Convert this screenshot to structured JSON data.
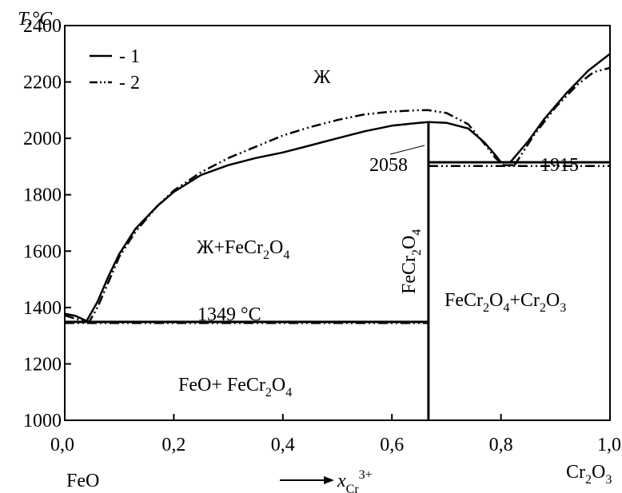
{
  "chart_data": {
    "type": "line",
    "title": "",
    "xlabel": "x",
    "xlabel_subscript": "Cr",
    "xlabel_superscript": "3+",
    "ylabel": "T,°C",
    "xlim": [
      0.0,
      1.0
    ],
    "ylim": [
      1000,
      2400
    ],
    "x_ticks": [
      "0,0",
      "0,2",
      "0,4",
      "0,6",
      "0,8",
      "1,0"
    ],
    "x_tick_values": [
      0.0,
      0.2,
      0.4,
      0.6,
      0.8,
      1.0
    ],
    "y_ticks": [
      "1000",
      "1200",
      "1400",
      "1600",
      "1800",
      "2000",
      "2200",
      "2400"
    ],
    "y_tick_values": [
      1000,
      1200,
      1400,
      1600,
      1800,
      2000,
      2200,
      2400
    ],
    "x_end_labels": {
      "left": "FeO",
      "right": {
        "base": "Cr",
        "sub1": "2",
        "mid": "O",
        "sub2": "3"
      }
    },
    "legend": {
      "position": "top-left",
      "entries": [
        {
          "style": "solid",
          "label": "- 1"
        },
        {
          "style": "dash-dot-dot",
          "label": "- 2"
        }
      ]
    },
    "series": [
      {
        "name": "1",
        "style": "solid",
        "segments": [
          [
            [
              0.0,
              1378
            ],
            [
              0.02,
              1370
            ],
            [
              0.04,
              1352
            ],
            [
              0.06,
              1420
            ],
            [
              0.08,
              1510
            ],
            [
              0.1,
              1590
            ],
            [
              0.13,
              1680
            ],
            [
              0.17,
              1760
            ],
            [
              0.2,
              1810
            ],
            [
              0.25,
              1870
            ],
            [
              0.3,
              1905
            ],
            [
              0.35,
              1930
            ],
            [
              0.4,
              1950
            ],
            [
              0.45,
              1975
            ],
            [
              0.5,
              2000
            ],
            [
              0.55,
              2025
            ],
            [
              0.6,
              2045
            ],
            [
              0.65,
              2055
            ],
            [
              0.667,
              2058
            ],
            [
              0.7,
              2055
            ],
            [
              0.74,
              2035
            ],
            [
              0.77,
              1985
            ],
            [
              0.79,
              1940
            ],
            [
              0.8,
              1915
            ]
          ],
          [
            [
              0.8,
              1915
            ],
            [
              0.817,
              1915
            ]
          ],
          [
            [
              0.817,
              1915
            ],
            [
              0.85,
              1990
            ],
            [
              0.88,
              2070
            ],
            [
              0.92,
              2160
            ],
            [
              0.96,
              2240
            ],
            [
              1.0,
              2300
            ]
          ]
        ]
      },
      {
        "name": "2",
        "style": "dash-dot-dot",
        "segments": [
          [
            [
              0.0,
              1372
            ],
            [
              0.02,
              1360
            ],
            [
              0.045,
              1350
            ],
            [
              0.06,
              1400
            ],
            [
              0.08,
              1490
            ],
            [
              0.1,
              1580
            ],
            [
              0.13,
              1670
            ],
            [
              0.17,
              1760
            ],
            [
              0.2,
              1815
            ],
            [
              0.25,
              1880
            ],
            [
              0.3,
              1930
            ],
            [
              0.35,
              1970
            ],
            [
              0.4,
              2010
            ],
            [
              0.45,
              2040
            ],
            [
              0.5,
              2065
            ],
            [
              0.55,
              2085
            ],
            [
              0.6,
              2095
            ],
            [
              0.65,
              2100
            ],
            [
              0.667,
              2100
            ],
            [
              0.7,
              2090
            ],
            [
              0.74,
              2050
            ],
            [
              0.77,
              1980
            ],
            [
              0.79,
              1930
            ],
            [
              0.805,
              1905
            ]
          ],
          [
            [
              0.805,
              1905
            ],
            [
              0.825,
              1905
            ]
          ],
          [
            [
              0.825,
              1905
            ],
            [
              0.86,
              2010
            ],
            [
              0.9,
              2110
            ],
            [
              0.94,
              2190
            ],
            [
              0.97,
              2235
            ],
            [
              1.0,
              2250
            ]
          ]
        ]
      }
    ],
    "invariant_lines": [
      {
        "series": "1",
        "style": "solid",
        "x": [
          0.0,
          0.667
        ],
        "y": 1349
      },
      {
        "series": "2",
        "style": "dash-dot-dot",
        "x": [
          0.0,
          0.667
        ],
        "y": 1345
      },
      {
        "series": "1",
        "style": "solid",
        "x": [
          0.667,
          1.0
        ],
        "y": 1915
      },
      {
        "series": "2",
        "style": "dash-dot-dot",
        "x": [
          0.667,
          1.0
        ],
        "y": 1902
      },
      {
        "series": "1",
        "style": "solid",
        "x_vertical": 0.667,
        "y": [
          1000,
          2058
        ]
      }
    ],
    "annotations": {
      "liquid": "Ж",
      "liquid_plus_spinel": {
        "pre": "Ж+FeCr",
        "s1": "2",
        "mid": "O",
        "s2": "4"
      },
      "feo_plus_spinel": {
        "pre": "FeO+ FeCr",
        "s1": "2",
        "mid": "O",
        "s2": "4"
      },
      "spinel_plus_cr2o3": {
        "pre": "FeCr",
        "s1": "2",
        "mid": "O",
        "s2": "4",
        "mid2": "+Cr",
        "s3": "2",
        "mid3": "O",
        "s4": "3"
      },
      "spinel_vertical": {
        "pre": "FeCr",
        "s1": "2",
        "mid": "O",
        "s2": "4"
      },
      "eutectic_low": "1349 °C",
      "congruent_max": "2058",
      "eutectic_high": "1915"
    }
  }
}
